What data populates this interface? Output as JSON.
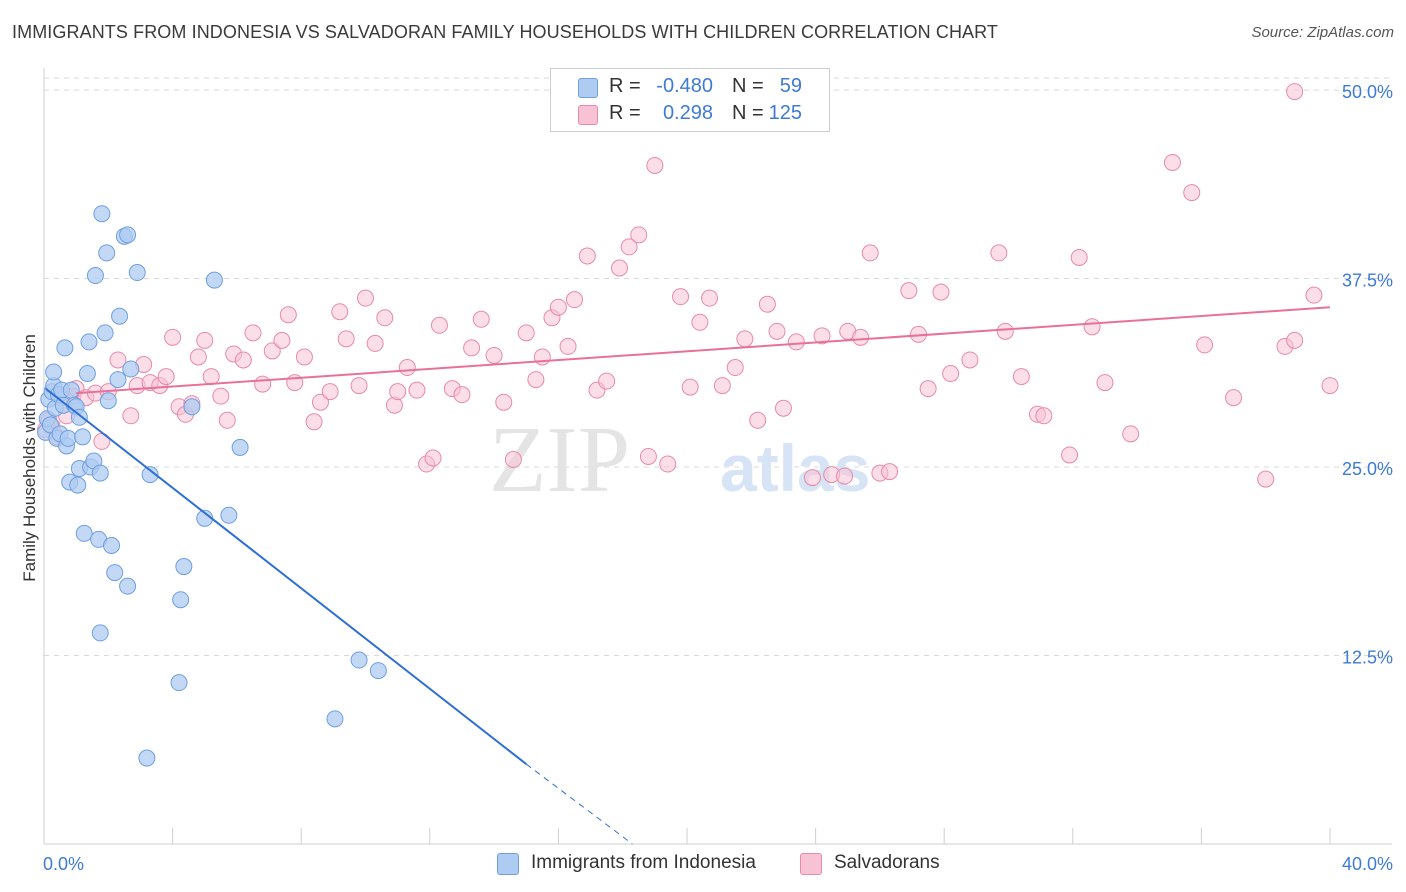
{
  "title": "IMMIGRANTS FROM INDONESIA VS SALVADORAN FAMILY HOUSEHOLDS WITH CHILDREN CORRELATION CHART",
  "source": "Source: ZipAtlas.com",
  "watermark": {
    "zip": "ZIP",
    "atlas": "atlas"
  },
  "colors": {
    "blue_fill": "#aecbf2",
    "blue_stroke": "#6f9fe0",
    "blue_line": "#2d6fd6",
    "pink_fill": "#f7c3d4",
    "pink_stroke": "#e88aab",
    "pink_line": "#e8719a",
    "axis_text": "#3d7bd6",
    "grid": "#d9d9d9"
  },
  "legend_top": [
    {
      "r_label": "R =",
      "r_value": "-0.480",
      "n_label": "N =",
      "n_value": "59"
    },
    {
      "r_label": "R =",
      "r_value": "0.298",
      "n_label": "N =",
      "n_value": "125"
    }
  ],
  "legend_bottom": [
    {
      "label": "Immigrants from Indonesia"
    },
    {
      "label": "Salvadorans"
    }
  ],
  "chart_data": {
    "type": "scatter",
    "title": "IMMIGRANTS FROM INDONESIA VS SALVADORAN FAMILY HOUSEHOLDS WITH CHILDREN CORRELATION CHART",
    "xlabel": "",
    "ylabel": "Family Households with Children",
    "xlim": [
      0,
      40
    ],
    "ylim": [
      0,
      51
    ],
    "x_tick_labels": [
      {
        "value": 0,
        "label": "0.0%"
      },
      {
        "value": 40,
        "label": "40.0%"
      }
    ],
    "y_tick_labels": [
      {
        "value": 12.5,
        "label": "12.5%"
      },
      {
        "value": 25,
        "label": "25.0%"
      },
      {
        "value": 37.5,
        "label": "37.5%"
      },
      {
        "value": 50,
        "label": "50.0%"
      }
    ],
    "series": [
      {
        "name": "Immigrants from Indonesia",
        "color": "blue",
        "r": -0.48,
        "n": 59,
        "trend": {
          "x0": 0.05,
          "y0": 30.2,
          "x1": 15.0,
          "y1": 5.3,
          "dash_x1": 18.3,
          "dash_y1": 0
        },
        "points": [
          [
            0.05,
            27.3
          ],
          [
            0.1,
            28.2
          ],
          [
            0.15,
            29.5
          ],
          [
            0.2,
            27.8
          ],
          [
            0.25,
            30.0
          ],
          [
            0.3,
            30.4
          ],
          [
            0.3,
            31.3
          ],
          [
            0.35,
            28.9
          ],
          [
            0.4,
            26.9
          ],
          [
            0.45,
            29.8
          ],
          [
            0.5,
            27.2
          ],
          [
            0.55,
            30.1
          ],
          [
            0.6,
            29.1
          ],
          [
            0.65,
            32.9
          ],
          [
            0.7,
            26.4
          ],
          [
            0.75,
            26.9
          ],
          [
            0.8,
            24.0
          ],
          [
            0.85,
            30.1
          ],
          [
            0.95,
            29.1
          ],
          [
            1.0,
            29.0
          ],
          [
            1.05,
            23.8
          ],
          [
            1.1,
            28.3
          ],
          [
            1.1,
            24.9
          ],
          [
            1.2,
            27.0
          ],
          [
            1.25,
            20.6
          ],
          [
            1.35,
            31.2
          ],
          [
            1.4,
            33.3
          ],
          [
            1.45,
            25.0
          ],
          [
            1.55,
            25.4
          ],
          [
            1.6,
            37.7
          ],
          [
            1.7,
            20.2
          ],
          [
            1.75,
            24.6
          ],
          [
            1.75,
            14.0
          ],
          [
            1.8,
            41.8
          ],
          [
            1.9,
            33.9
          ],
          [
            1.95,
            39.2
          ],
          [
            2.0,
            29.4
          ],
          [
            2.1,
            19.8
          ],
          [
            2.2,
            18.0
          ],
          [
            2.3,
            30.8
          ],
          [
            2.35,
            35.0
          ],
          [
            2.5,
            40.3
          ],
          [
            2.6,
            40.4
          ],
          [
            2.6,
            17.1
          ],
          [
            2.7,
            31.5
          ],
          [
            2.9,
            37.9
          ],
          [
            3.2,
            5.7
          ],
          [
            3.3,
            24.5
          ],
          [
            4.2,
            10.7
          ],
          [
            4.25,
            16.2
          ],
          [
            4.35,
            18.4
          ],
          [
            4.6,
            29.0
          ],
          [
            5.0,
            21.6
          ],
          [
            5.3,
            37.4
          ],
          [
            5.75,
            21.8
          ],
          [
            6.1,
            26.3
          ],
          [
            9.05,
            8.3
          ],
          [
            9.8,
            12.2
          ],
          [
            10.4,
            11.5
          ]
        ]
      },
      {
        "name": "Salvadorans",
        "color": "pink",
        "r": 0.298,
        "n": 125,
        "trend": {
          "x0": 1.0,
          "y0": 29.9,
          "x1": 40.0,
          "y1": 35.6
        },
        "points": [
          [
            0.05,
            27.5
          ],
          [
            0.15,
            28.1
          ],
          [
            0.25,
            27.7
          ],
          [
            0.4,
            27.0
          ],
          [
            0.55,
            29.6
          ],
          [
            0.7,
            28.4
          ],
          [
            0.9,
            29.7
          ],
          [
            1.0,
            30.2
          ],
          [
            1.3,
            29.6
          ],
          [
            1.6,
            29.9
          ],
          [
            1.8,
            26.7
          ],
          [
            2.0,
            30.0
          ],
          [
            2.3,
            32.1
          ],
          [
            2.7,
            28.4
          ],
          [
            2.9,
            30.4
          ],
          [
            3.1,
            31.8
          ],
          [
            3.3,
            30.6
          ],
          [
            3.6,
            30.4
          ],
          [
            3.8,
            31.0
          ],
          [
            4.0,
            33.6
          ],
          [
            4.2,
            29.0
          ],
          [
            4.4,
            28.5
          ],
          [
            4.6,
            29.2
          ],
          [
            4.8,
            32.3
          ],
          [
            5.0,
            33.4
          ],
          [
            5.2,
            31.0
          ],
          [
            5.5,
            29.7
          ],
          [
            5.7,
            28.1
          ],
          [
            5.9,
            32.5
          ],
          [
            6.2,
            32.1
          ],
          [
            6.5,
            33.9
          ],
          [
            6.8,
            30.5
          ],
          [
            7.1,
            32.7
          ],
          [
            7.4,
            33.4
          ],
          [
            7.6,
            35.1
          ],
          [
            7.8,
            30.6
          ],
          [
            8.1,
            32.3
          ],
          [
            8.4,
            28.0
          ],
          [
            8.6,
            29.3
          ],
          [
            8.9,
            30.0
          ],
          [
            9.2,
            35.3
          ],
          [
            9.4,
            33.5
          ],
          [
            9.8,
            30.4
          ],
          [
            10.0,
            36.2
          ],
          [
            10.3,
            33.2
          ],
          [
            10.6,
            34.9
          ],
          [
            10.9,
            29.1
          ],
          [
            11.0,
            30.0
          ],
          [
            11.3,
            31.6
          ],
          [
            11.6,
            30.1
          ],
          [
            11.9,
            25.2
          ],
          [
            12.1,
            25.6
          ],
          [
            12.3,
            34.4
          ],
          [
            12.7,
            30.2
          ],
          [
            13.0,
            29.8
          ],
          [
            13.3,
            32.9
          ],
          [
            13.6,
            34.8
          ],
          [
            14.0,
            32.4
          ],
          [
            14.3,
            29.3
          ],
          [
            14.6,
            25.5
          ],
          [
            15.0,
            33.9
          ],
          [
            15.3,
            30.8
          ],
          [
            15.5,
            32.3
          ],
          [
            15.8,
            34.9
          ],
          [
            16.0,
            35.6
          ],
          [
            16.3,
            33.0
          ],
          [
            16.5,
            36.1
          ],
          [
            16.9,
            39.0
          ],
          [
            17.2,
            30.1
          ],
          [
            17.5,
            30.7
          ],
          [
            17.9,
            38.2
          ],
          [
            18.2,
            39.6
          ],
          [
            18.5,
            40.4
          ],
          [
            18.8,
            25.7
          ],
          [
            19.0,
            45.0
          ],
          [
            19.4,
            25.2
          ],
          [
            19.8,
            36.3
          ],
          [
            20.1,
            30.3
          ],
          [
            20.4,
            34.6
          ],
          [
            20.7,
            36.2
          ],
          [
            21.1,
            30.4
          ],
          [
            21.5,
            31.6
          ],
          [
            21.8,
            33.5
          ],
          [
            22.2,
            28.1
          ],
          [
            22.5,
            35.8
          ],
          [
            22.8,
            34.0
          ],
          [
            23.0,
            28.9
          ],
          [
            23.4,
            33.3
          ],
          [
            23.9,
            24.3
          ],
          [
            24.2,
            33.7
          ],
          [
            24.5,
            24.5
          ],
          [
            25.0,
            34.0
          ],
          [
            25.4,
            33.6
          ],
          [
            25.7,
            39.2
          ],
          [
            26.0,
            24.6
          ],
          [
            26.3,
            24.7
          ],
          [
            26.9,
            36.7
          ],
          [
            27.2,
            33.8
          ],
          [
            27.5,
            30.2
          ],
          [
            27.9,
            36.6
          ],
          [
            28.2,
            31.2
          ],
          [
            28.8,
            32.1
          ],
          [
            29.7,
            39.2
          ],
          [
            29.9,
            34.0
          ],
          [
            30.4,
            31.0
          ],
          [
            30.9,
            28.5
          ],
          [
            31.1,
            28.4
          ],
          [
            31.9,
            25.8
          ],
          [
            32.2,
            38.9
          ],
          [
            32.6,
            34.3
          ],
          [
            33.0,
            30.6
          ],
          [
            33.8,
            27.2
          ],
          [
            35.1,
            45.2
          ],
          [
            35.7,
            43.2
          ],
          [
            36.1,
            33.1
          ],
          [
            37.0,
            29.6
          ],
          [
            38.0,
            24.2
          ],
          [
            38.6,
            33.0
          ],
          [
            38.9,
            33.4
          ],
          [
            39.5,
            36.4
          ],
          [
            40.0,
            30.4
          ],
          [
            38.9,
            49.9
          ],
          [
            24.9,
            24.4
          ]
        ]
      }
    ]
  }
}
